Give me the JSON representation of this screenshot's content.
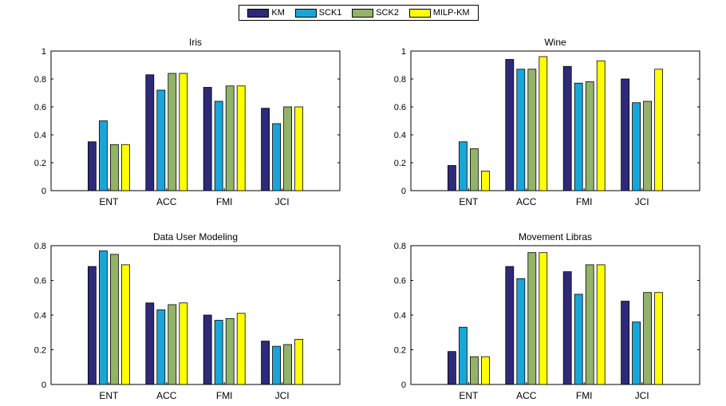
{
  "legend": {
    "items": [
      {
        "label": "KM",
        "color": "#2e2a7a"
      },
      {
        "label": "SCK1",
        "color": "#1aa5d9"
      },
      {
        "label": "SCK2",
        "color": "#93b369"
      },
      {
        "label": "MILP-KM",
        "color": "#ffff00"
      }
    ]
  },
  "chart_data": [
    {
      "type": "bar",
      "title": "Iris",
      "categories": [
        "ENT",
        "ACC",
        "FMI",
        "JCI"
      ],
      "ylim": [
        0,
        1
      ],
      "yticks": [
        "0",
        "0.2",
        "0.4",
        "0.6",
        "0.8",
        "1"
      ],
      "series": [
        {
          "name": "KM",
          "values": [
            0.35,
            0.83,
            0.74,
            0.59
          ]
        },
        {
          "name": "SCK1",
          "values": [
            0.5,
            0.72,
            0.64,
            0.48
          ]
        },
        {
          "name": "SCK2",
          "values": [
            0.33,
            0.84,
            0.75,
            0.6
          ]
        },
        {
          "name": "MILP-KM",
          "values": [
            0.33,
            0.84,
            0.75,
            0.6
          ]
        }
      ]
    },
    {
      "type": "bar",
      "title": "Wine",
      "categories": [
        "ENT",
        "ACC",
        "FMI",
        "JCI"
      ],
      "ylim": [
        0,
        1
      ],
      "yticks": [
        "0",
        "0.2",
        "0.4",
        "0.6",
        "0.8",
        "1"
      ],
      "series": [
        {
          "name": "KM",
          "values": [
            0.18,
            0.94,
            0.89,
            0.8
          ]
        },
        {
          "name": "SCK1",
          "values": [
            0.35,
            0.87,
            0.77,
            0.63
          ]
        },
        {
          "name": "SCK2",
          "values": [
            0.3,
            0.87,
            0.78,
            0.64
          ]
        },
        {
          "name": "MILP-KM",
          "values": [
            0.14,
            0.96,
            0.93,
            0.87
          ]
        }
      ]
    },
    {
      "type": "bar",
      "title": "Data User Modeling",
      "categories": [
        "ENT",
        "ACC",
        "FMI",
        "JCI"
      ],
      "ylim": [
        0,
        0.8
      ],
      "yticks": [
        "0",
        "0.2",
        "0.4",
        "0.6",
        "0.8"
      ],
      "series": [
        {
          "name": "KM",
          "values": [
            0.68,
            0.47,
            0.4,
            0.25
          ]
        },
        {
          "name": "SCK1",
          "values": [
            0.77,
            0.43,
            0.37,
            0.22
          ]
        },
        {
          "name": "SCK2",
          "values": [
            0.75,
            0.46,
            0.38,
            0.23
          ]
        },
        {
          "name": "MILP-KM",
          "values": [
            0.69,
            0.47,
            0.41,
            0.26
          ]
        }
      ]
    },
    {
      "type": "bar",
      "title": "Movement Libras",
      "categories": [
        "ENT",
        "ACC",
        "FMI",
        "JCI"
      ],
      "ylim": [
        0,
        0.8
      ],
      "yticks": [
        "0",
        "0.2",
        "0.4",
        "0.6",
        "0.8"
      ],
      "series": [
        {
          "name": "KM",
          "values": [
            0.19,
            0.68,
            0.65,
            0.48
          ]
        },
        {
          "name": "SCK1",
          "values": [
            0.33,
            0.61,
            0.52,
            0.36
          ]
        },
        {
          "name": "SCK2",
          "values": [
            0.16,
            0.76,
            0.69,
            0.53
          ]
        },
        {
          "name": "MILP-KM",
          "values": [
            0.16,
            0.76,
            0.69,
            0.53
          ]
        }
      ]
    }
  ]
}
